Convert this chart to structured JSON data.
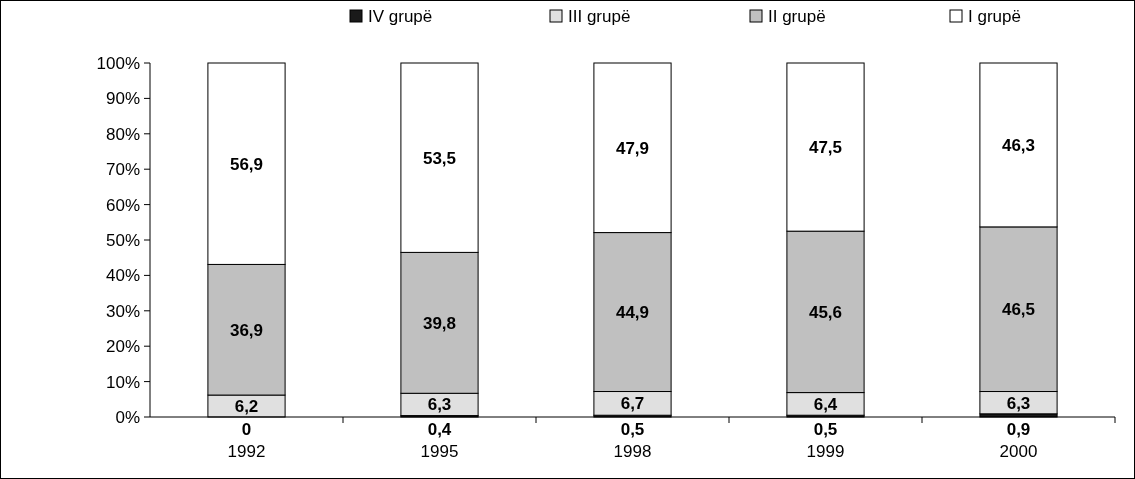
{
  "chart_data": {
    "type": "bar",
    "stacked": true,
    "categories": [
      "1992",
      "1995",
      "1998",
      "1999",
      "2000"
    ],
    "series": [
      {
        "name": "IV grupë",
        "color": "#1a1a1a",
        "values": [
          0,
          0.4,
          0.5,
          0.5,
          0.9
        ],
        "value_labels": [
          "0",
          "0,4",
          "0,5",
          "0,5",
          "0,9"
        ]
      },
      {
        "name": "III grupë",
        "color": "#e0e0e0",
        "values": [
          6.2,
          6.3,
          6.7,
          6.4,
          6.3
        ],
        "value_labels": [
          "6,2",
          "6,3",
          "6,7",
          "6,4",
          "6,3"
        ]
      },
      {
        "name": "II grupë",
        "color": "#c0c0c0",
        "values": [
          36.9,
          39.8,
          44.9,
          45.6,
          46.5
        ],
        "value_labels": [
          "36,9",
          "39,8",
          "44,9",
          "45,6",
          "46,5"
        ]
      },
      {
        "name": "I grupë",
        "color": "#ffffff",
        "values": [
          56.9,
          53.5,
          47.9,
          47.5,
          46.3
        ],
        "value_labels": [
          "56,9",
          "53,5",
          "47,9",
          "47,5",
          "46,3"
        ]
      }
    ],
    "ylim": [
      0,
      100
    ],
    "yticks": [
      {
        "value": 0,
        "label": "0%"
      },
      {
        "value": 10,
        "label": "10%"
      },
      {
        "value": 20,
        "label": "20%"
      },
      {
        "value": 30,
        "label": "30%"
      },
      {
        "value": 40,
        "label": "40%"
      },
      {
        "value": 50,
        "label": "50%"
      },
      {
        "value": 60,
        "label": "60%"
      },
      {
        "value": 70,
        "label": "70%"
      },
      {
        "value": 80,
        "label": "80%"
      },
      {
        "value": 90,
        "label": "90%"
      },
      {
        "value": 100,
        "label": "100%"
      }
    ],
    "legend": "top",
    "grid": false
  }
}
